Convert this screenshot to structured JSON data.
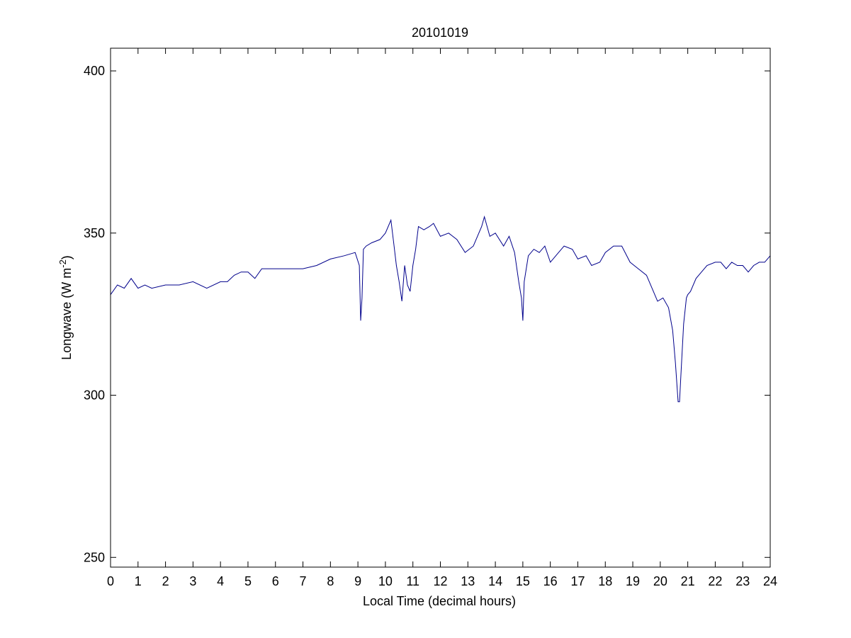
{
  "chart_data": {
    "type": "line",
    "title": "20101019",
    "xlabel": "Local Time (decimal hours)",
    "ylabel_main": "Longwave (W m",
    "ylabel_sup": "-2",
    "ylabel_tail": ")",
    "xlim": [
      0,
      24
    ],
    "ylim": [
      247,
      407
    ],
    "xticks": [
      0,
      1,
      2,
      3,
      4,
      5,
      6,
      7,
      8,
      9,
      10,
      11,
      12,
      13,
      14,
      15,
      16,
      17,
      18,
      19,
      20,
      21,
      22,
      23,
      24
    ],
    "yticks": [
      250,
      300,
      350,
      400
    ],
    "grid": false,
    "line_color": "#00008B",
    "series": [
      {
        "x": [
          0,
          0.25,
          0.5,
          0.75,
          1,
          1.25,
          1.5,
          2,
          2.5,
          3,
          3.5,
          4,
          4.25,
          4.5,
          4.75,
          5,
          5.25,
          5.5,
          6,
          6.5,
          7,
          7.5,
          8,
          8.5,
          8.9,
          9.05,
          9.1,
          9.15,
          9.2,
          9.3,
          9.5,
          9.8,
          10,
          10.2,
          10.3,
          10.4,
          10.5,
          10.6,
          10.7,
          10.8,
          10.9,
          11,
          11.1,
          11.2,
          11.4,
          11.6,
          11.75,
          12,
          12.3,
          12.6,
          12.9,
          13.2,
          13.5,
          13.6,
          13.8,
          14,
          14.3,
          14.5,
          14.7,
          14.85,
          14.95,
          15,
          15.05,
          15.2,
          15.4,
          15.6,
          15.8,
          16,
          16.1,
          16.3,
          16.5,
          16.8,
          17,
          17.3,
          17.5,
          17.8,
          18,
          18.3,
          18.6,
          18.9,
          19.2,
          19.5,
          19.7,
          19.9,
          20.1,
          20.3,
          20.45,
          20.55,
          20.65,
          20.7,
          20.75,
          20.85,
          20.95,
          21,
          21.1,
          21.3,
          21.5,
          21.7,
          22,
          22.2,
          22.4,
          22.6,
          22.8,
          23,
          23.2,
          23.4,
          23.6,
          23.8,
          24
        ],
        "y": [
          331,
          334,
          333,
          336,
          333,
          334,
          333,
          334,
          334,
          335,
          333,
          335,
          335,
          337,
          338,
          338,
          336,
          339,
          339,
          339,
          339,
          340,
          342,
          343,
          344,
          340,
          323,
          330,
          345,
          346,
          347,
          348,
          350,
          354,
          347,
          340,
          335,
          329,
          340,
          334,
          332,
          340,
          345,
          352,
          351,
          352,
          353,
          349,
          350,
          348,
          344,
          346,
          352,
          355,
          349,
          350,
          346,
          349,
          344,
          335,
          330,
          323,
          335,
          343,
          345,
          344,
          346,
          341,
          342,
          344,
          346,
          345,
          342,
          343,
          340,
          341,
          344,
          346,
          346,
          341,
          339,
          337,
          333,
          329,
          330,
          327,
          320,
          310,
          298,
          298,
          306,
          322,
          330,
          331,
          332,
          336,
          338,
          340,
          341,
          341,
          339,
          341,
          340,
          340,
          338,
          340,
          341,
          341,
          343
        ]
      }
    ]
  }
}
